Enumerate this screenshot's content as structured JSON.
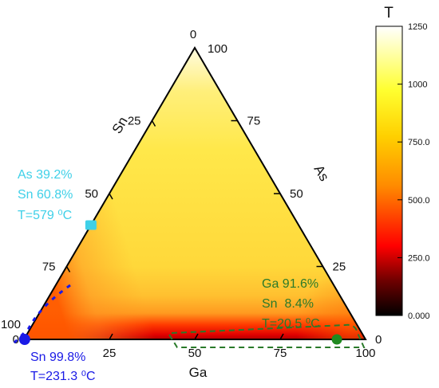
{
  "chart_data": {
    "type": "heatmap",
    "subtype": "ternary",
    "axes": [
      {
        "name": "Ga",
        "ticks": [
          "0",
          "25",
          "50",
          "75",
          "100"
        ]
      },
      {
        "name": "As",
        "ticks": [
          "0",
          "25",
          "50",
          "75",
          "100"
        ]
      },
      {
        "name": "Sn",
        "ticks": [
          "0",
          "25",
          "50",
          "75",
          "100"
        ]
      }
    ],
    "colorbar": {
      "title": "T",
      "range": [
        0,
        1250
      ],
      "ticks": [
        "0.000",
        "250.0",
        "500.0",
        "750.0",
        "1000",
        "1250"
      ]
    },
    "points": [
      {
        "label_lines": [
          "As 39.2%",
          "Sn 60.8%",
          "T=579 ⁰C"
        ],
        "Ga": 0.0,
        "As": 39.2,
        "Sn": 60.8,
        "T": 579,
        "color": "#3fd0e8"
      },
      {
        "label_lines": [
          "Ga 91.6%",
          "Sn  8.4%",
          "T=20.5 ⁰C"
        ],
        "Ga": 91.6,
        "As": 0.0,
        "Sn": 8.4,
        "T": 20.5,
        "color": "#1f8a1f"
      },
      {
        "label_lines": [
          "Sn 99.8%",
          "T=231.3 ⁰C"
        ],
        "Ga": 0.2,
        "As": 0.0,
        "Sn": 99.8,
        "T": 231.3,
        "color": "#1a1ae6"
      }
    ]
  }
}
